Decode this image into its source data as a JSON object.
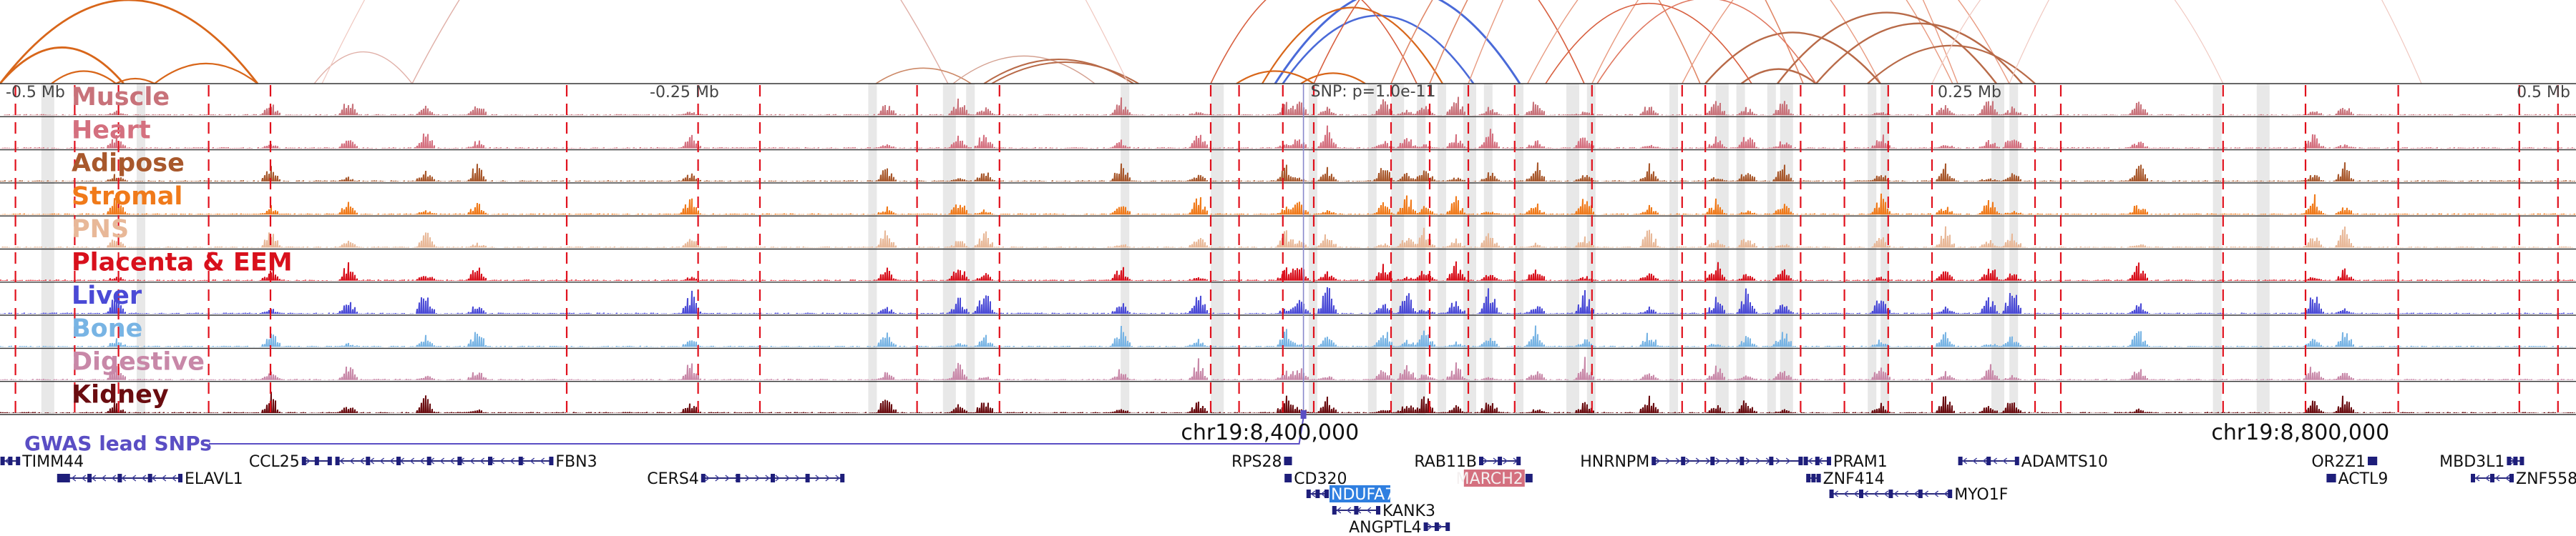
{
  "axis": {
    "ticks": [
      {
        "label": "-0.5 Mb",
        "value": -0.5
      },
      {
        "label": "-0.25 Mb",
        "value": -0.25
      },
      {
        "label": "0.25 Mb",
        "value": 0.25
      },
      {
        "label": "0.5 Mb",
        "value": 0.5
      }
    ],
    "snp_label": "SNP: p=1.0e-11",
    "range_mb": [
      -0.5,
      0.5
    ]
  },
  "tracks": [
    {
      "name": "Muscle",
      "color": "#c8727a"
    },
    {
      "name": "Heart",
      "color": "#d4707f"
    },
    {
      "name": "Adipose",
      "color": "#a8582c"
    },
    {
      "name": "Stromal",
      "color": "#f07a1a"
    },
    {
      "name": "PNS",
      "color": "#e8b898"
    },
    {
      "name": "Placenta & EEM",
      "color": "#d8101c"
    },
    {
      "name": "Liver",
      "color": "#4a4ad6"
    },
    {
      "name": "Bone",
      "color": "#78b4e4"
    },
    {
      "name": "Digestive",
      "color": "#c888a8"
    },
    {
      "name": "Kidney",
      "color": "#6a0c10"
    }
  ],
  "gwas": {
    "label": "GWAS lead SNPs",
    "color": "#5a4ec4"
  },
  "coordinates": [
    {
      "label": "chr19:8,400,000",
      "value_mb": -0.007
    },
    {
      "label": "chr19:8,800,000",
      "value_mb": 0.393
    }
  ],
  "genes": [
    {
      "name": "TIMM44",
      "row": 0,
      "start": -0.499,
      "end": -0.493,
      "label_side": "right",
      "strand": "-"
    },
    {
      "name": "ELAVL1",
      "row": 1,
      "start": -0.477,
      "end": -0.43,
      "label_side": "right",
      "strand": "-"
    },
    {
      "name": "CCL25",
      "row": 0,
      "start": -0.382,
      "end": -0.372,
      "label_side": "left",
      "strand": "+"
    },
    {
      "name": "FBN3",
      "row": 0,
      "start": -0.369,
      "end": -0.286,
      "label_side": "right",
      "strand": "-"
    },
    {
      "name": "CERS4",
      "row": 1,
      "start": -0.227,
      "end": -0.173,
      "label_side": "left",
      "strand": "+"
    },
    {
      "name": "RPS28",
      "row": 0,
      "start": -0.0007,
      "end": 0.0007,
      "label_side": "left",
      "strand": "+"
    },
    {
      "name": "CD320",
      "row": 1,
      "start": -0.0005,
      "end": 0.0005,
      "label_side": "right",
      "strand": "-"
    },
    {
      "name": "NDUFA7",
      "row": 2,
      "start": 0.008,
      "end": 0.015,
      "label_side": "right",
      "strand": "-",
      "highlight": "#2f7fe0",
      "text_color": "#ffffff"
    },
    {
      "name": "KANK3",
      "row": 3,
      "start": 0.018,
      "end": 0.035,
      "label_side": "right",
      "strand": "-"
    },
    {
      "name": "ANGPTL4",
      "row": 4,
      "start": 0.0535,
      "end": 0.062,
      "label_side": "left",
      "strand": "+"
    },
    {
      "name": "RAB11B",
      "row": 0,
      "start": 0.075,
      "end": 0.0895,
      "label_side": "left",
      "strand": "+"
    },
    {
      "name": "MARCH2",
      "row": 1,
      "start": 0.093,
      "end": 0.093,
      "label_side": "left",
      "strand": "+",
      "highlight": "#d4707f",
      "text_color": "#f4f0f0"
    },
    {
      "name": "HNRNPM",
      "row": 0,
      "start": 0.142,
      "end": 0.199,
      "label_side": "left",
      "strand": "+"
    },
    {
      "name": "PRAM1",
      "row": 0,
      "start": 0.201,
      "end": 0.21,
      "label_side": "right",
      "strand": "-"
    },
    {
      "name": "ZNF414",
      "row": 1,
      "start": 0.202,
      "end": 0.206,
      "label_side": "right",
      "strand": "-"
    },
    {
      "name": "MYO1F",
      "row": 2,
      "start": 0.211,
      "end": 0.257,
      "label_side": "right",
      "strand": "-"
    },
    {
      "name": "ADAMTS10",
      "row": 0,
      "start": 0.261,
      "end": 0.283,
      "label_side": "right",
      "strand": "-"
    },
    {
      "name": "OR2Z1",
      "row": 0,
      "start": 0.42,
      "end": 0.422,
      "label_side": "left",
      "strand": "+"
    },
    {
      "name": "ACTL9",
      "row": 1,
      "start": 0.404,
      "end": 0.406,
      "label_side": "right",
      "strand": "+"
    },
    {
      "name": "MBD3L1",
      "row": 0,
      "start": 0.474,
      "end": 0.479,
      "label_side": "left",
      "strand": "+"
    },
    {
      "name": "ZNF558",
      "row": 1,
      "start": 0.46,
      "end": 0.475,
      "label_side": "right",
      "strand": "-"
    }
  ]
}
